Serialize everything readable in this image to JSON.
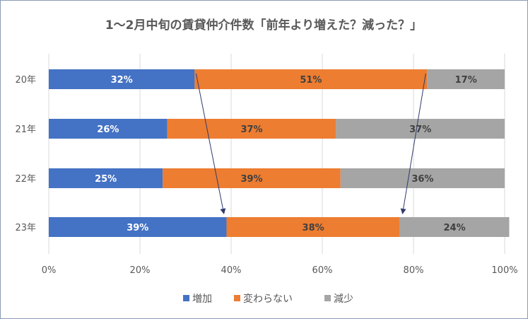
{
  "chart_data": {
    "type": "bar",
    "orientation": "horizontal",
    "stacked": "percent",
    "title": "1～2月中旬の賃貸仲介件数「前年より増えた？減った？」",
    "categories": [
      "20年",
      "21年",
      "22年",
      "23年"
    ],
    "series": [
      {
        "name": "増加",
        "color": "#4472C4",
        "values": [
          32,
          26,
          25,
          39
        ],
        "labels": [
          "32%",
          "26%",
          "25%",
          "39%"
        ]
      },
      {
        "name": "変わらない",
        "color": "#ED7D31",
        "values": [
          51,
          37,
          39,
          38
        ],
        "labels": [
          "51%",
          "37%",
          "39%",
          "38%"
        ]
      },
      {
        "name": "減少",
        "color": "#A5A5A5",
        "values": [
          17,
          37,
          36,
          24
        ],
        "labels": [
          "17%",
          "37%",
          "36%",
          "24%"
        ]
      }
    ],
    "xlim": [
      0,
      100
    ],
    "xticks": [
      "0%",
      "20%",
      "40%",
      "60%",
      "80%",
      "100%"
    ],
    "grid": true,
    "legend": "bottom",
    "annotations": [
      {
        "type": "arrow",
        "from": {
          "category": "20年",
          "value": 32
        },
        "to": {
          "category": "23年",
          "value": 39
        }
      },
      {
        "type": "arrow",
        "from": {
          "category": "20年",
          "value": 83
        },
        "to": {
          "category": "23年",
          "value": 77
        }
      }
    ]
  }
}
